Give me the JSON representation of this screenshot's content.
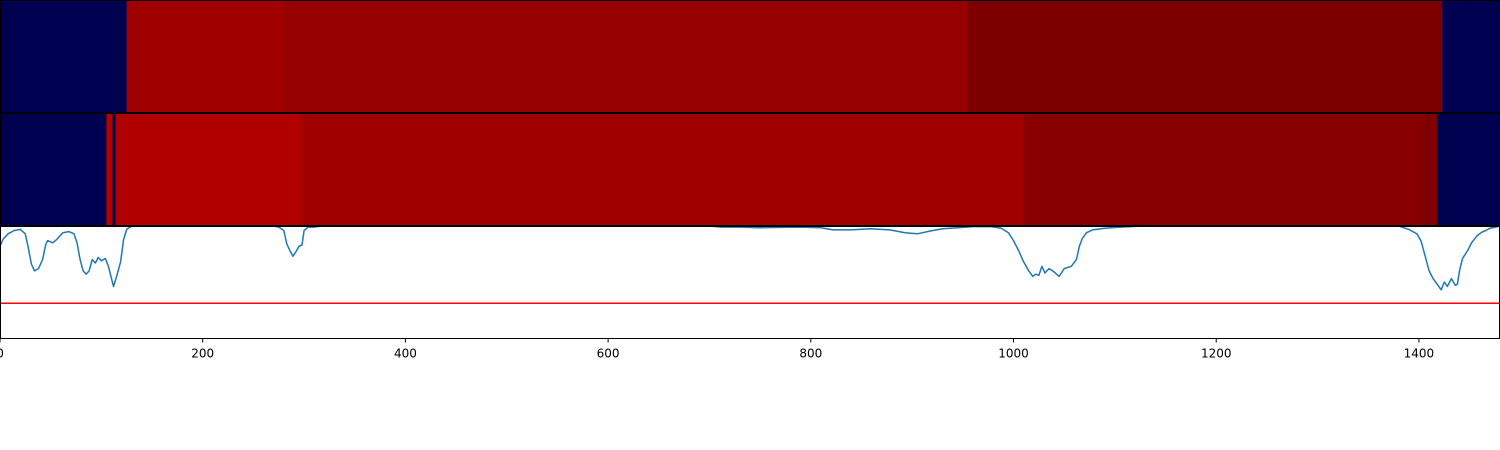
{
  "chart_data": [
    {
      "type": "heatmap",
      "xlim": [
        0,
        1480
      ],
      "segments": [
        {
          "start": 0,
          "end": 125,
          "color": "#000050"
        },
        {
          "start": 125,
          "end": 280,
          "color": "#a00000"
        },
        {
          "start": 280,
          "end": 955,
          "color": "#960000"
        },
        {
          "start": 955,
          "end": 1423,
          "color": "#7d0000"
        },
        {
          "start": 1423,
          "end": 1480,
          "color": "#000050"
        }
      ]
    },
    {
      "type": "heatmap",
      "xlim": [
        0,
        1480
      ],
      "segments": [
        {
          "start": 0,
          "end": 105,
          "color": "#000050"
        },
        {
          "start": 105,
          "end": 111,
          "color": "#b40000"
        },
        {
          "start": 111,
          "end": 114,
          "color": "#000050"
        },
        {
          "start": 114,
          "end": 297,
          "color": "#b00000"
        },
        {
          "start": 297,
          "end": 1010,
          "color": "#a00000"
        },
        {
          "start": 1010,
          "end": 1403,
          "color": "#880000"
        },
        {
          "start": 1403,
          "end": 1418,
          "color": "#800000"
        },
        {
          "start": 1418,
          "end": 1480,
          "color": "#000050"
        }
      ]
    },
    {
      "type": "line",
      "xlim": [
        0,
        1480
      ],
      "ylim": [
        0,
        1
      ],
      "x_ticks": [
        0,
        200,
        400,
        600,
        800,
        1000,
        1200,
        1400
      ],
      "x_tick_labels": [
        "0",
        "200",
        "400",
        "600",
        "800",
        "1000",
        "1200",
        "1400"
      ],
      "series": [
        {
          "color": "#1f77b4",
          "points": [
            [
              0,
              0.82
            ],
            [
              3,
              0.88
            ],
            [
              8,
              0.93
            ],
            [
              14,
              0.96
            ],
            [
              20,
              0.97
            ],
            [
              25,
              0.93
            ],
            [
              28,
              0.8
            ],
            [
              31,
              0.66
            ],
            [
              34,
              0.6
            ],
            [
              38,
              0.62
            ],
            [
              42,
              0.7
            ],
            [
              45,
              0.83
            ],
            [
              47,
              0.87
            ],
            [
              52,
              0.85
            ],
            [
              56,
              0.88
            ],
            [
              62,
              0.94
            ],
            [
              68,
              0.95
            ],
            [
              73,
              0.93
            ],
            [
              76,
              0.85
            ],
            [
              79,
              0.7
            ],
            [
              82,
              0.6
            ],
            [
              85,
              0.57
            ],
            [
              88,
              0.6
            ],
            [
              91,
              0.7
            ],
            [
              94,
              0.67
            ],
            [
              97,
              0.72
            ],
            [
              100,
              0.69
            ],
            [
              104,
              0.71
            ],
            [
              107,
              0.64
            ],
            [
              110,
              0.53
            ],
            [
              112,
              0.46
            ],
            [
              115,
              0.55
            ],
            [
              119,
              0.68
            ],
            [
              122,
              0.88
            ],
            [
              125,
              0.97
            ],
            [
              128,
              0.99
            ],
            [
              131,
              1.0
            ],
            [
              270,
              1.0
            ],
            [
              275,
              0.99
            ],
            [
              280,
              0.96
            ],
            [
              283,
              0.84
            ],
            [
              286,
              0.78
            ],
            [
              289,
              0.73
            ],
            [
              292,
              0.77
            ],
            [
              295,
              0.82
            ],
            [
              298,
              0.83
            ],
            [
              300,
              0.96
            ],
            [
              304,
              0.99
            ],
            [
              310,
              0.99
            ],
            [
              318,
              1.0
            ],
            [
              700,
              1.0
            ],
            [
              712,
              0.99
            ],
            [
              730,
              0.99
            ],
            [
              750,
              0.985
            ],
            [
              790,
              0.99
            ],
            [
              810,
              0.985
            ],
            [
              822,
              0.965
            ],
            [
              840,
              0.965
            ],
            [
              858,
              0.975
            ],
            [
              878,
              0.965
            ],
            [
              893,
              0.94
            ],
            [
              905,
              0.93
            ],
            [
              918,
              0.955
            ],
            [
              930,
              0.975
            ],
            [
              945,
              0.985
            ],
            [
              960,
              0.995
            ],
            [
              978,
              0.995
            ],
            [
              988,
              0.98
            ],
            [
              995,
              0.94
            ],
            [
              1000,
              0.87
            ],
            [
              1005,
              0.78
            ],
            [
              1010,
              0.68
            ],
            [
              1015,
              0.6
            ],
            [
              1019,
              0.55
            ],
            [
              1022,
              0.57
            ],
            [
              1025,
              0.56
            ],
            [
              1028,
              0.64
            ],
            [
              1031,
              0.58
            ],
            [
              1035,
              0.62
            ],
            [
              1040,
              0.59
            ],
            [
              1045,
              0.55
            ],
            [
              1050,
              0.62
            ],
            [
              1057,
              0.64
            ],
            [
              1062,
              0.7
            ],
            [
              1065,
              0.82
            ],
            [
              1068,
              0.89
            ],
            [
              1072,
              0.94
            ],
            [
              1078,
              0.965
            ],
            [
              1090,
              0.98
            ],
            [
              1105,
              0.99
            ],
            [
              1130,
              1.0
            ],
            [
              1380,
              1.0
            ],
            [
              1390,
              0.97
            ],
            [
              1398,
              0.93
            ],
            [
              1402,
              0.87
            ],
            [
              1405,
              0.77
            ],
            [
              1410,
              0.6
            ],
            [
              1414,
              0.53
            ],
            [
              1418,
              0.48
            ],
            [
              1422,
              0.43
            ],
            [
              1425,
              0.5
            ],
            [
              1428,
              0.46
            ],
            [
              1432,
              0.53
            ],
            [
              1436,
              0.47
            ],
            [
              1438,
              0.48
            ],
            [
              1440,
              0.6
            ],
            [
              1443,
              0.71
            ],
            [
              1448,
              0.78
            ],
            [
              1452,
              0.85
            ],
            [
              1457,
              0.91
            ],
            [
              1462,
              0.945
            ],
            [
              1466,
              0.96
            ],
            [
              1470,
              0.98
            ],
            [
              1476,
              0.99
            ],
            [
              1480,
              1.0
            ]
          ]
        },
        {
          "color": "#ff0000",
          "points": [
            [
              0,
              0.31
            ],
            [
              1480,
              0.31
            ]
          ]
        }
      ]
    }
  ]
}
